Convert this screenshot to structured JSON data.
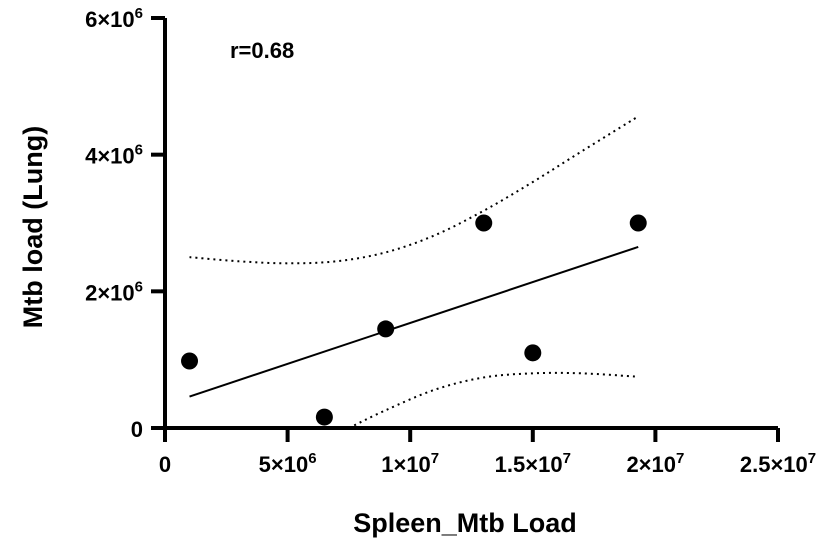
{
  "chart_data": {
    "type": "scatter",
    "xlabel": "Spleen_Mtb Load",
    "ylabel": "Mtb load (Lung)",
    "annotation": "r=0.68",
    "xlim": [
      0,
      25000000
    ],
    "ylim": [
      0,
      6000000
    ],
    "x_ticks": [
      {
        "value": 0,
        "mant": "",
        "exp": "",
        "plain": "0"
      },
      {
        "value": 5000000,
        "mant": "5×10",
        "exp": "6",
        "plain": ""
      },
      {
        "value": 10000000,
        "mant": "1×10",
        "exp": "7",
        "plain": ""
      },
      {
        "value": 15000000,
        "mant": "1.5×10",
        "exp": "7",
        "plain": ""
      },
      {
        "value": 20000000,
        "mant": "2×10",
        "exp": "7",
        "plain": ""
      },
      {
        "value": 25000000,
        "mant": "2.5×10",
        "exp": "7",
        "plain": ""
      }
    ],
    "y_ticks": [
      {
        "value": 0,
        "mant": "",
        "exp": "",
        "plain": "0"
      },
      {
        "value": 2000000,
        "mant": "2×10",
        "exp": "6",
        "plain": ""
      },
      {
        "value": 4000000,
        "mant": "4×10",
        "exp": "6",
        "plain": ""
      },
      {
        "value": 6000000,
        "mant": "6×10",
        "exp": "6",
        "plain": ""
      }
    ],
    "points": [
      {
        "x": 1000000,
        "y": 980000
      },
      {
        "x": 6500000,
        "y": 160000
      },
      {
        "x": 9000000,
        "y": 1450000
      },
      {
        "x": 13000000,
        "y": 3000000
      },
      {
        "x": 15000000,
        "y": 1100000
      },
      {
        "x": 19300000,
        "y": 3000000
      }
    ],
    "fit_line": {
      "x": [
        1000000,
        19300000
      ],
      "y": [
        460000,
        2650000
      ]
    },
    "ci_upper": {
      "x": [
        1000000,
        3000000,
        5000000,
        7000000,
        9000000,
        11000000,
        13000000,
        15000000,
        17000000,
        19300000
      ],
      "y": [
        2500000,
        2440000,
        2410000,
        2440000,
        2570000,
        2820000,
        3180000,
        3600000,
        4050000,
        4560000
      ]
    },
    "ci_lower": {
      "x": [
        7500000,
        9000000,
        11000000,
        13000000,
        15000000,
        17000000,
        19300000
      ],
      "y": [
        0,
        260000,
        560000,
        740000,
        800000,
        800000,
        750000
      ]
    },
    "grid": false,
    "legend": "none"
  }
}
